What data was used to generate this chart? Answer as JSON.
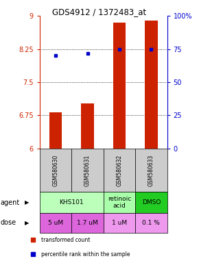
{
  "title": "GDS4912 / 1372483_at",
  "samples": [
    "GSM580630",
    "GSM580631",
    "GSM580632",
    "GSM580633"
  ],
  "bar_values": [
    6.82,
    7.02,
    8.85,
    8.9
  ],
  "bar_baseline": 6.0,
  "percentile_values": [
    8.1,
    8.15,
    8.25,
    8.25
  ],
  "ylim": [
    6.0,
    9.0
  ],
  "yticks_left": [
    6,
    6.75,
    7.5,
    8.25,
    9
  ],
  "yticks_right": [
    0,
    25,
    50,
    75,
    100
  ],
  "yticks_right_labels": [
    "0",
    "25",
    "50",
    "75",
    "100%"
  ],
  "hlines": [
    6.75,
    7.5,
    8.25
  ],
  "bar_color": "#cc2200",
  "dot_color": "#0000cc",
  "agent_spans": [
    {
      "label": "KHS101",
      "start": 0,
      "end": 2,
      "color": "#bbffbb"
    },
    {
      "label": "retinoic\nacid",
      "start": 2,
      "end": 3,
      "color": "#aaffaa"
    },
    {
      "label": "DMSO",
      "start": 3,
      "end": 4,
      "color": "#22cc22"
    }
  ],
  "dose_labels": [
    "5 uM",
    "1.7 uM",
    "1 uM",
    "0.1 %"
  ],
  "dose_colors": [
    "#dd66dd",
    "#dd66dd",
    "#ee99ee",
    "#ee99ee"
  ],
  "sample_bg_color": "#cccccc",
  "agent_row_label": "agent",
  "dose_row_label": "dose",
  "legend_items": [
    {
      "color": "#cc2200",
      "label": "transformed count"
    },
    {
      "color": "#0000cc",
      "label": "percentile rank within the sample"
    }
  ]
}
